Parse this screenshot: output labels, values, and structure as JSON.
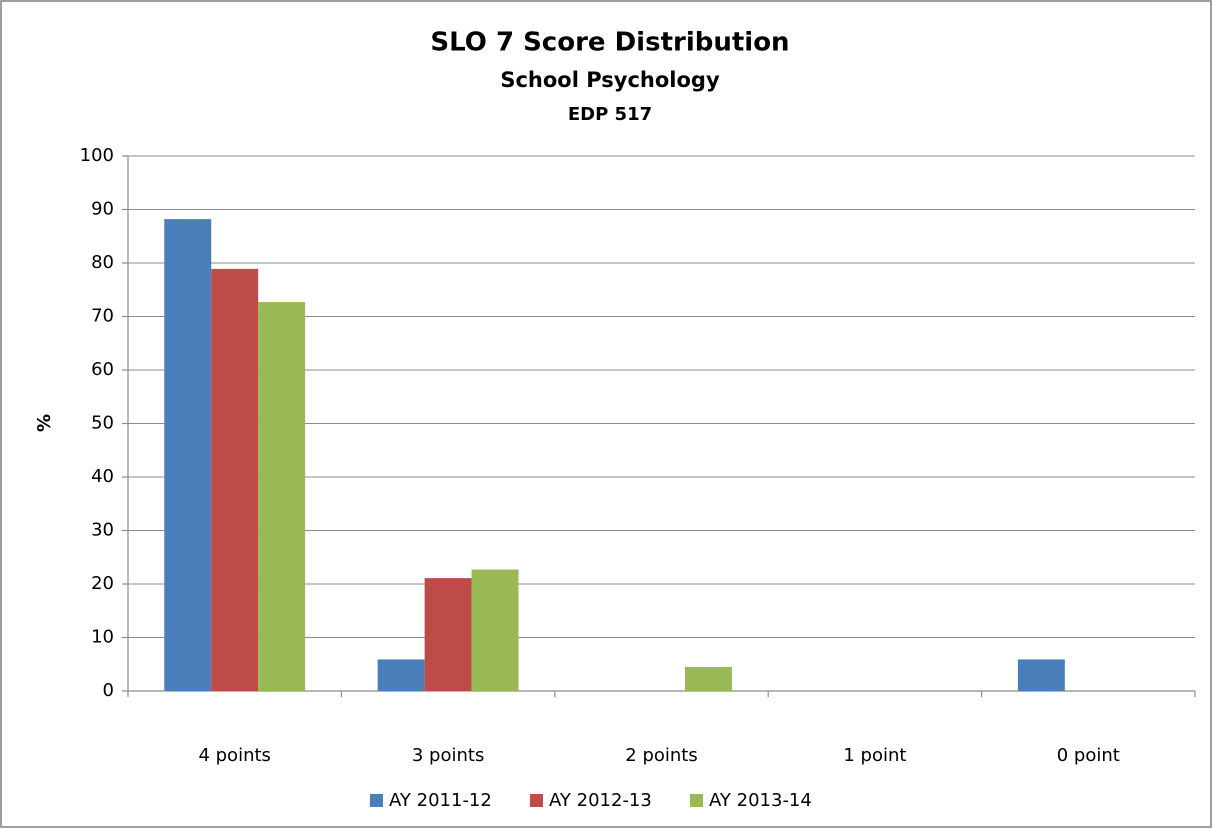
{
  "chart_data": {
    "type": "bar",
    "title": "SLO 7 Score Distribution",
    "subtitle": "School Psychology",
    "subtitle_2": "EDP 517",
    "y_label": "%",
    "categories": [
      "4 points",
      "3 points",
      "2 points",
      "1 point",
      "0 point"
    ],
    "series": [
      {
        "name": "AY 2011-12",
        "color": "#4a7ebb",
        "values": [
          88.2,
          5.9,
          0,
          0,
          5.9
        ]
      },
      {
        "name": "AY 2012-13",
        "color": "#be4b48",
        "values": [
          78.9,
          21.1,
          0,
          0,
          0
        ]
      },
      {
        "name": "AY 2013-14",
        "color": "#98b954",
        "values": [
          72.7,
          22.7,
          4.5,
          0,
          0
        ]
      }
    ],
    "ylim": [
      0,
      100
    ],
    "yticks": [
      0,
      10,
      20,
      30,
      40,
      50,
      60,
      70,
      80,
      90,
      100
    ],
    "grid": true,
    "legend": "bottom"
  }
}
